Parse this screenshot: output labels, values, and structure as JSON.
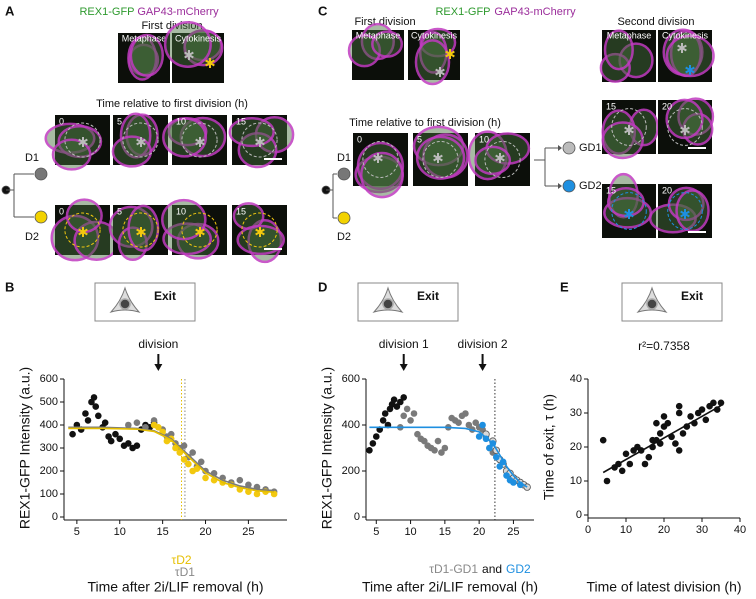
{
  "panels": {
    "A": {
      "letter": "A",
      "stain": [
        "REX1-GFP",
        "GAP43-mCherry"
      ],
      "first_division": "First division",
      "phases": [
        "Metaphase",
        "Cytokinesis"
      ],
      "time_title": "Time relative to first division (h)",
      "rows": [
        {
          "label": "D1",
          "times": [
            0,
            5,
            10,
            15
          ]
        },
        {
          "label": "D2",
          "times": [
            0,
            5,
            10,
            15
          ]
        }
      ]
    },
    "C": {
      "letter": "C",
      "stain": [
        "REX1-GFP",
        "GAP43-mCherry"
      ],
      "first_division": "First division",
      "first_phases": [
        "Metaphase",
        "Cytokinesis"
      ],
      "second_division": "Second division",
      "second_phases": [
        "Metaphase",
        "Cytokinesis"
      ],
      "time_title": "Time relative to first division (h)",
      "rows": [
        {
          "label": "D1",
          "times": [
            0,
            5,
            10
          ]
        },
        {
          "label": "D2"
        }
      ],
      "granddaughters": [
        {
          "label": "GD1",
          "times": [
            15,
            20
          ]
        },
        {
          "label": "GD2",
          "times": [
            15,
            20
          ]
        }
      ]
    }
  },
  "chart_data": [
    {
      "type": "scatter",
      "panel": "B",
      "icon_label": "Exit",
      "xlabel": "Time after 2i/LIF removal (h)",
      "ylabel": "REX1-GFP Intensity (a.u.)",
      "xlim": [
        3.5,
        29.5
      ],
      "ylim": [
        0,
        600
      ],
      "xticks": [
        5,
        10,
        15,
        20,
        25
      ],
      "yticks": [
        0,
        100,
        200,
        300,
        400,
        500,
        600
      ],
      "annotations": [
        {
          "text": "division",
          "x": 14.5
        }
      ],
      "vlines": [
        {
          "x": 17.2,
          "label": "τD2",
          "color": "#e6bf00"
        },
        {
          "x": 17.6,
          "label": "τD1",
          "color": "#888888"
        }
      ],
      "series": [
        {
          "color": "#111111",
          "x": [
            4.5,
            5,
            5.5,
            6,
            6.3,
            6.7,
            7,
            7.2,
            7.5,
            8,
            8.3,
            8.7,
            9,
            9.5,
            10,
            10.5,
            11,
            11.5,
            12,
            12.5,
            13,
            13.5,
            14
          ],
          "y": [
            360,
            400,
            380,
            450,
            420,
            500,
            520,
            480,
            440,
            390,
            410,
            350,
            330,
            360,
            340,
            310,
            320,
            300,
            310,
            380,
            400,
            390,
            410
          ]
        },
        {
          "color": "#7a7a7a",
          "x": [
            11,
            12,
            13,
            14,
            15,
            15.5,
            16,
            16.5,
            17,
            17.5,
            18,
            18.5,
            19,
            19.5,
            20,
            21,
            22,
            23,
            24,
            25,
            26,
            27,
            28
          ],
          "y": [
            400,
            410,
            390,
            420,
            380,
            350,
            360,
            320,
            300,
            310,
            260,
            280,
            220,
            240,
            200,
            190,
            170,
            150,
            160,
            140,
            130,
            120,
            110
          ]
        },
        {
          "color": "#f2c80f",
          "x": [
            14,
            14.5,
            15,
            15.5,
            16,
            16.5,
            17,
            17.5,
            18,
            18.5,
            19,
            20,
            21,
            22,
            23,
            24,
            25,
            26,
            27,
            28
          ],
          "y": [
            400,
            390,
            370,
            330,
            340,
            300,
            280,
            250,
            230,
            200,
            210,
            170,
            160,
            150,
            140,
            120,
            110,
            100,
            110,
            100
          ]
        }
      ],
      "fits": [
        {
          "color": "#7a7a7a",
          "x": [
            4,
            8,
            12,
            14,
            16,
            18,
            20,
            22,
            24,
            26,
            28
          ],
          "y": [
            390,
            390,
            385,
            375,
            340,
            270,
            200,
            160,
            135,
            120,
            115
          ]
        },
        {
          "color": "#e6bf00",
          "x": [
            4,
            8,
            12,
            14,
            16,
            18,
            20,
            22,
            24,
            26,
            28
          ],
          "y": [
            385,
            385,
            382,
            372,
            335,
            262,
            192,
            150,
            128,
            114,
            108
          ]
        }
      ]
    },
    {
      "type": "scatter",
      "panel": "D",
      "icon_label": "Exit",
      "xlabel": "Time after 2i/LIF removal (h)",
      "ylabel": "REX1-GFP Intensity (a.u.)",
      "xlim": [
        3.5,
        28
      ],
      "ylim": [
        0,
        600
      ],
      "xticks": [
        5,
        10,
        15,
        20,
        25
      ],
      "yticks": [
        0,
        200,
        400,
        600
      ],
      "annotations": [
        {
          "text": "division 1",
          "x": 9
        },
        {
          "text": "division 2",
          "x": 20.5
        }
      ],
      "vlines": [
        {
          "x": 22.3,
          "color": "#333333"
        }
      ],
      "footnote": [
        {
          "text": "τD1-GD1",
          "color": "#888888"
        },
        {
          "text": "and",
          "color": "#111111"
        },
        {
          "text": "GD2",
          "color": "#1e8fe0"
        }
      ],
      "series": [
        {
          "color": "#111111",
          "x": [
            4,
            4.5,
            5,
            5.5,
            6,
            6.3,
            6.7,
            7,
            7.3,
            7.6,
            8,
            8.5,
            9
          ],
          "y": [
            290,
            320,
            350,
            380,
            420,
            450,
            400,
            470,
            490,
            510,
            480,
            500,
            520
          ]
        },
        {
          "color": "#7a7a7a",
          "x": [
            8.5,
            9,
            9.5,
            10,
            10.5,
            11,
            11.5,
            12,
            12.5,
            13,
            13.5,
            14,
            14.5,
            15,
            15.5,
            16,
            16.5,
            17,
            17.5,
            18,
            18.5,
            19,
            19.5,
            20,
            20.5,
            21,
            21.5,
            22
          ],
          "y": [
            390,
            440,
            470,
            420,
            450,
            360,
            340,
            330,
            310,
            300,
            290,
            330,
            280,
            300,
            390,
            430,
            420,
            410,
            440,
            450,
            400,
            380,
            410,
            390,
            380,
            350,
            300,
            280
          ]
        },
        {
          "color": "#d9d9d9",
          "edgecolor": "#555555",
          "x": [
            21,
            22,
            22.5,
            23,
            23.5,
            24,
            24.5,
            25,
            25.5,
            26,
            26.5,
            27
          ],
          "y": [
            360,
            330,
            290,
            250,
            230,
            200,
            190,
            170,
            160,
            150,
            140,
            130
          ]
        },
        {
          "color": "#1e8fe0",
          "x": [
            20,
            20.5,
            21,
            21.5,
            22,
            22.5,
            23,
            23.5,
            24,
            24.5,
            25,
            26
          ],
          "y": [
            350,
            400,
            340,
            300,
            320,
            260,
            220,
            240,
            180,
            160,
            150,
            140
          ]
        }
      ],
      "fits": [
        {
          "color": "#1e8fe0",
          "x": [
            4,
            10,
            15,
            18,
            20,
            22,
            23,
            24,
            25,
            26,
            27
          ],
          "y": [
            390,
            390,
            390,
            385,
            370,
            320,
            270,
            220,
            180,
            150,
            130
          ]
        }
      ]
    },
    {
      "type": "scatter",
      "panel": "E",
      "icon_label": "Exit",
      "xlabel": "Time of latest division (h)",
      "ylabel": "Time of exit, τ (h)",
      "xlim": [
        0,
        40
      ],
      "ylim": [
        0,
        40
      ],
      "xticks": [
        0,
        10,
        20,
        30,
        40
      ],
      "yticks": [
        0,
        10,
        20,
        30,
        40
      ],
      "stat_label": "r²=0.7358",
      "series": [
        {
          "color": "#111111",
          "x": [
            4,
            5,
            7,
            8,
            9,
            10,
            11,
            12,
            13,
            14,
            15,
            16,
            17,
            17,
            18,
            18,
            19,
            19,
            20,
            20,
            21,
            22,
            23,
            24,
            24,
            24,
            25,
            26,
            27,
            28,
            29,
            30,
            31,
            32,
            33,
            34,
            35
          ],
          "y": [
            22,
            10,
            14,
            15,
            13,
            18,
            15,
            19,
            20,
            19,
            15,
            17,
            20,
            22,
            27,
            22,
            21,
            24,
            29,
            26,
            27,
            23,
            21,
            32,
            30,
            19,
            24,
            26,
            29,
            27,
            30,
            31,
            28,
            32,
            33,
            31,
            33
          ]
        }
      ],
      "fits": [
        {
          "color": "#111111",
          "x": [
            4,
            35
          ],
          "y": [
            12.5,
            32.2
          ]
        }
      ]
    }
  ]
}
